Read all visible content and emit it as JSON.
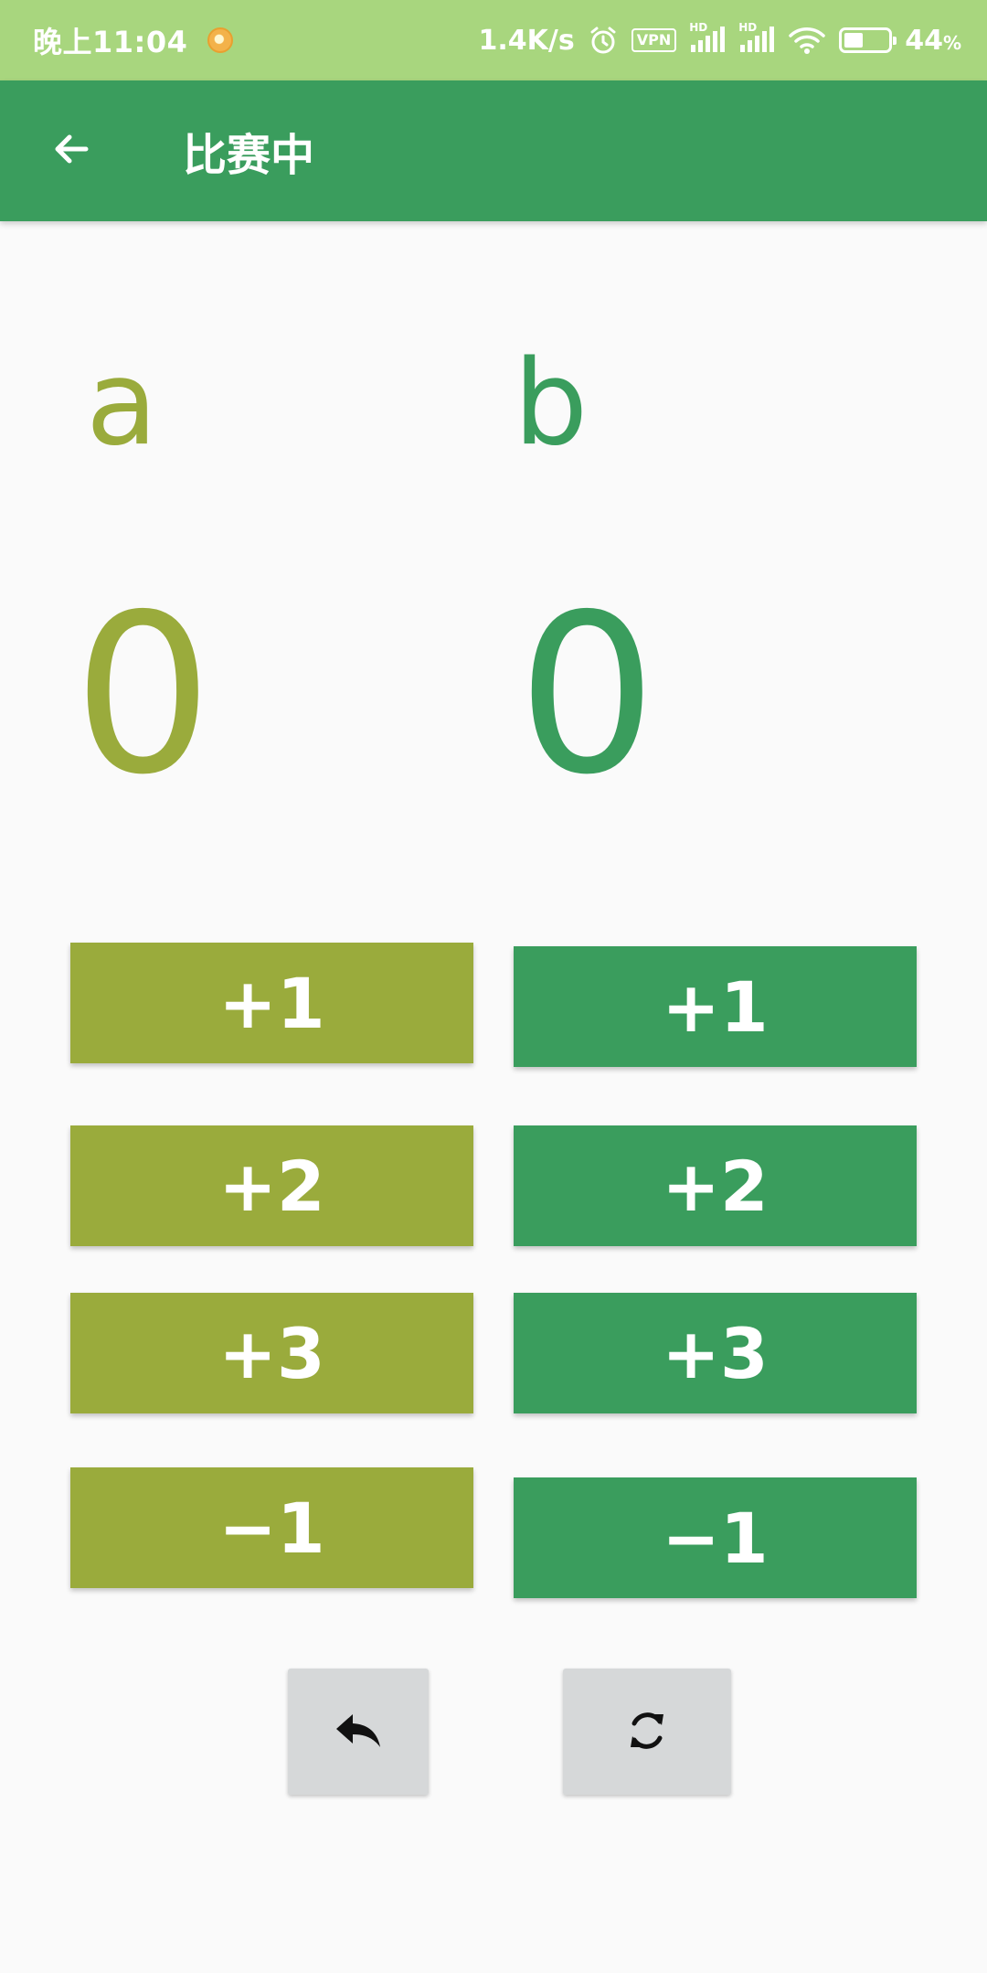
{
  "status_bar": {
    "time": "晚上11:04",
    "net_speed": "1.4K/s",
    "vpn": "VPN",
    "hd": "HD",
    "battery_text": "44",
    "battery_unit": "%",
    "battery_level": 0.44,
    "icons": [
      "notification-icon",
      "alarm-icon",
      "vpn-icon",
      "signal-icon",
      "signal-icon",
      "wifi-icon",
      "battery-icon"
    ]
  },
  "app_bar": {
    "title": "比赛中",
    "back_icon": "arrow-left-icon"
  },
  "team_a": {
    "name": "a",
    "score": "0",
    "color": "#9aab3c",
    "buttons": [
      "+1",
      "+2",
      "+3",
      "−1"
    ]
  },
  "team_b": {
    "name": "b",
    "score": "0",
    "color": "#3a9d5d",
    "buttons": [
      "+1",
      "+2",
      "+3",
      "−1"
    ]
  },
  "controls": {
    "undo_icon": "undo-icon",
    "reset_icon": "refresh-icon"
  },
  "colors": {
    "status_bar": "#a8d67e",
    "app_bar": "#3a9d5d",
    "background": "#fafafa",
    "control_button": "#d6d8d9"
  }
}
